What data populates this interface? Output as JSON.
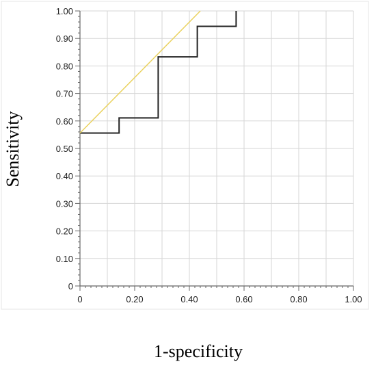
{
  "chart_data": {
    "type": "line",
    "title": "",
    "xlabel": "1-specificity",
    "ylabel": "Sensitivity",
    "xlim": [
      0,
      1
    ],
    "ylim": [
      0,
      1
    ],
    "grid": true,
    "x_ticks": [
      "0",
      "0.20",
      "0.40",
      "0.60",
      "0.80",
      "1.00"
    ],
    "y_ticks": [
      "0",
      "0.10",
      "0.20",
      "0.30",
      "0.40",
      "0.50",
      "0.60",
      "0.70",
      "0.80",
      "0.90",
      "1.00"
    ],
    "series": [
      {
        "style": "step",
        "color": "#222222",
        "x": [
          0,
          0.143,
          0.143,
          0.286,
          0.286,
          0.429,
          0.429,
          0.571,
          0.571
        ],
        "y": [
          0.556,
          0.556,
          0.611,
          0.611,
          0.833,
          0.833,
          0.944,
          0.944,
          1.0
        ]
      },
      {
        "style": "line",
        "color": "#ead25e",
        "x": [
          0,
          0.44
        ],
        "y": [
          0.556,
          1.0
        ]
      }
    ]
  }
}
